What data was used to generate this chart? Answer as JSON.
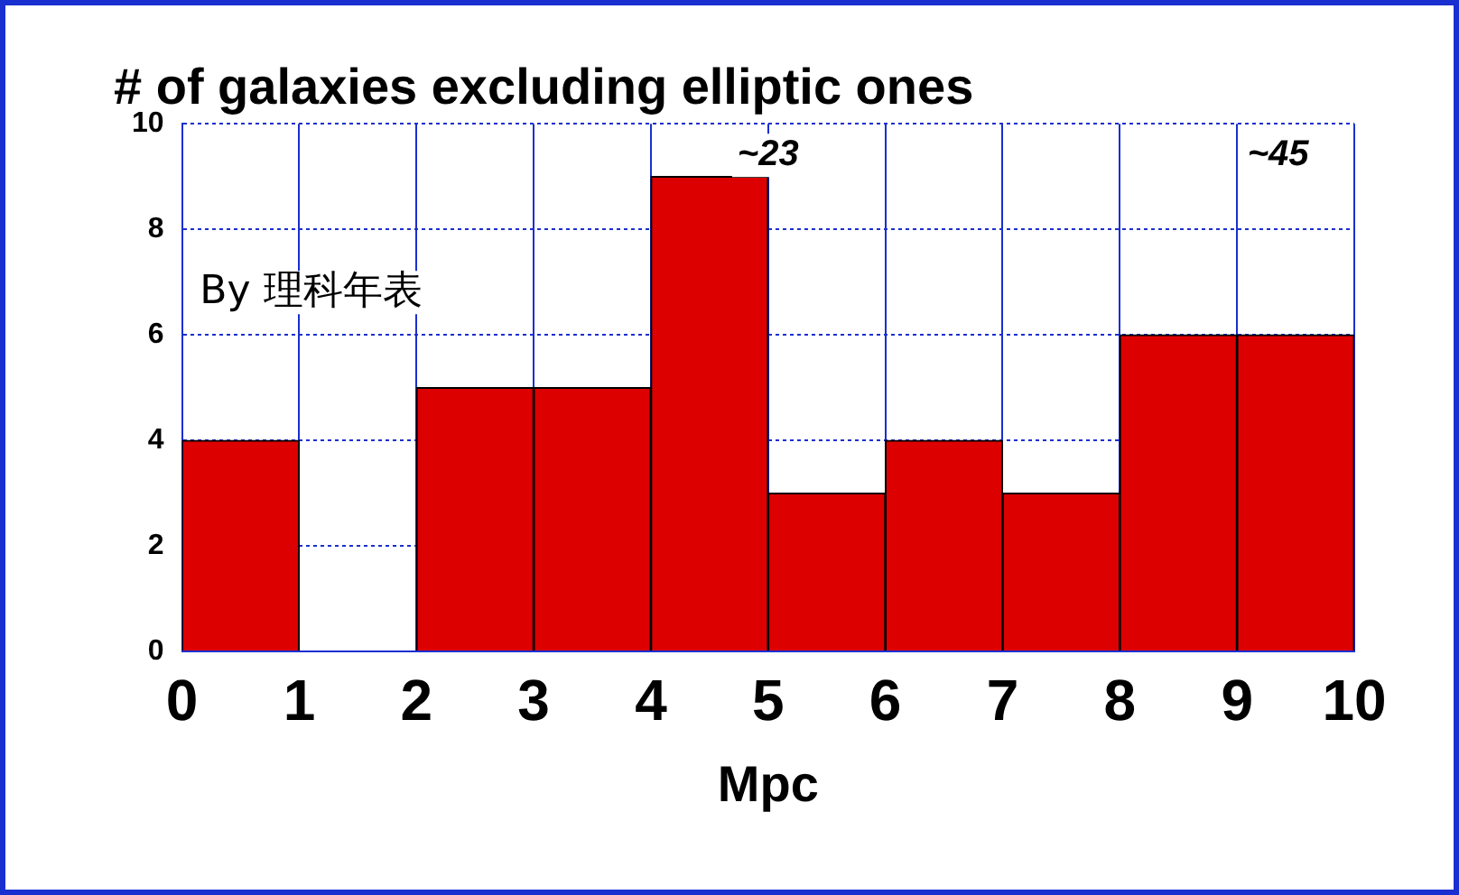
{
  "chart_data": {
    "type": "histogram",
    "title": "# of galaxies excluding elliptic ones",
    "xlabel": "Mpc",
    "bins": [
      0,
      1,
      2,
      3,
      4,
      5,
      6,
      7,
      8,
      9,
      10
    ],
    "values": [
      4,
      0,
      5,
      5,
      9,
      3,
      4,
      3,
      6,
      6
    ],
    "color": "#dd0000",
    "xlim": [
      0,
      10
    ],
    "xticks": [
      0,
      1,
      2,
      3,
      4,
      5,
      6,
      7,
      8,
      9,
      10
    ],
    "ylim": [
      0,
      10
    ],
    "yticks": [
      0,
      2,
      4,
      6,
      8,
      10
    ],
    "grid": true,
    "legend": false,
    "annotations": [
      "~23",
      "~45",
      "By 理科年表"
    ]
  }
}
